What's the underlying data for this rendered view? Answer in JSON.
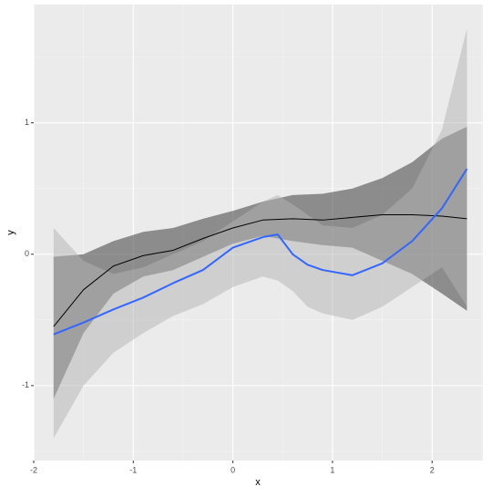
{
  "chart_data": {
    "type": "smooth",
    "x_label": "x",
    "y_label": "y",
    "xlim": [
      -2.0,
      2.51
    ],
    "ylim": [
      -1.57,
      1.9
    ],
    "xticks": [
      -2,
      -1,
      0,
      1,
      2
    ],
    "yticks": [
      -1,
      0,
      1
    ],
    "grid": true,
    "series": [
      {
        "color": "#000000",
        "band_color": "#4d4d4d",
        "x": [
          -1.8,
          -1.5,
          -1.2,
          -0.9,
          -0.6,
          -0.3,
          0,
          0.3,
          0.6,
          0.9,
          1.2,
          1.5,
          1.8,
          2.1,
          2.35
        ],
        "values": [
          -0.55,
          -0.27,
          -0.09,
          -0.01,
          0.03,
          0.12,
          0.2,
          0.26,
          0.27,
          0.26,
          0.28,
          0.3,
          0.3,
          0.29,
          0.27
        ],
        "lower": [
          -1.1,
          -0.6,
          -0.3,
          -0.17,
          -0.12,
          -0.02,
          0.08,
          0.14,
          0.1,
          0.07,
          0.05,
          -0.05,
          -0.15,
          -0.3,
          -0.43
        ],
        "upper": [
          -0.02,
          0.0,
          0.1,
          0.17,
          0.2,
          0.27,
          0.33,
          0.4,
          0.45,
          0.46,
          0.5,
          0.58,
          0.7,
          0.88,
          0.97
        ]
      },
      {
        "color": "#3366ff",
        "band_color": "#b3b3b3",
        "x": [
          -1.8,
          -1.5,
          -1.2,
          -0.9,
          -0.6,
          -0.3,
          0,
          0.3,
          0.45,
          0.6,
          0.75,
          0.9,
          1.2,
          1.5,
          1.8,
          2.1,
          2.35
        ],
        "values": [
          -0.61,
          -0.52,
          -0.42,
          -0.33,
          -0.22,
          -0.12,
          0.05,
          0.13,
          0.15,
          0.0,
          -0.08,
          -0.12,
          -0.16,
          -0.07,
          0.1,
          0.35,
          0.65
        ],
        "lower": [
          -1.4,
          -1.0,
          -0.75,
          -0.6,
          -0.47,
          -0.38,
          -0.25,
          -0.17,
          -0.2,
          -0.28,
          -0.4,
          -0.45,
          -0.5,
          -0.4,
          -0.25,
          -0.1,
          -0.4
        ],
        "upper": [
          0.2,
          -0.05,
          -0.15,
          -0.1,
          0.0,
          0.1,
          0.25,
          0.4,
          0.45,
          0.38,
          0.3,
          0.22,
          0.2,
          0.3,
          0.5,
          0.95,
          1.72
        ]
      }
    ]
  }
}
